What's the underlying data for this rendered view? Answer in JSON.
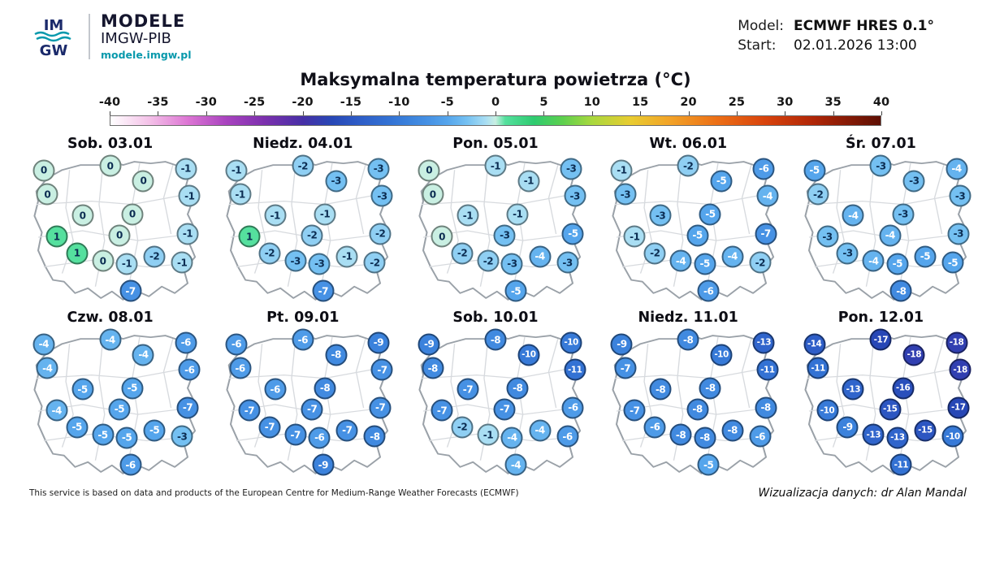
{
  "header": {
    "logo": {
      "mark_top": "IM",
      "mark_bottom": "GW",
      "brand": "MODELE",
      "org": "IMGW-PIB",
      "site": "modele.imgw.pl"
    },
    "model": {
      "label": "Model:",
      "value": "ECMWF HRES 0.1°"
    },
    "start": {
      "label": "Start:",
      "value": "02.01.2026 13:00"
    }
  },
  "title": "Maksymalna temperatura powietrza (°C)",
  "footer": {
    "left": "This service is based on data and products of the European Centre for Medium-Range Weather Forecasts (ECMWF)",
    "right": "Wizualizacja danych: dr Alan Mandal"
  },
  "chart_data": {
    "type": "heatmap",
    "subtype": "bubble-map-grid",
    "title": "Maksymalna temperatura powietrza (°C)",
    "unit": "°C",
    "model": "ECMWF HRES 0.1°",
    "run_start": "02.01.2026 13:00",
    "colorbar_ticks": [
      -40,
      -35,
      -30,
      -25,
      -20,
      -15,
      -10,
      -5,
      0,
      5,
      10,
      15,
      20,
      25,
      30,
      35,
      40
    ],
    "colorbar_range": [
      -40,
      40
    ],
    "color_scale": [
      [
        -40,
        "#ffffff"
      ],
      [
        -36,
        "#f4c2e8"
      ],
      [
        -32,
        "#dd76d4"
      ],
      [
        -28,
        "#a943bf"
      ],
      [
        -24,
        "#7c30ae"
      ],
      [
        -20,
        "#462fa6"
      ],
      [
        -17,
        "#2747b6"
      ],
      [
        -14,
        "#2e5ec8"
      ],
      [
        -11,
        "#3372d4"
      ],
      [
        -9,
        "#3b82dc"
      ],
      [
        -7,
        "#4691e4"
      ],
      [
        -5,
        "#55a5ec"
      ],
      [
        -3,
        "#74c0f2"
      ],
      [
        -1,
        "#a9def3"
      ],
      [
        0,
        "#c9efe2"
      ],
      [
        1,
        "#55e09e"
      ],
      [
        4,
        "#2ecb70"
      ],
      [
        7,
        "#5ed04e"
      ],
      [
        10,
        "#a8d83e"
      ],
      [
        14,
        "#e8cc30"
      ],
      [
        18,
        "#f2a428"
      ],
      [
        23,
        "#ec6f16"
      ],
      [
        28,
        "#d8430c"
      ],
      [
        33,
        "#b02607"
      ],
      [
        40,
        "#5e0f04"
      ]
    ],
    "station_positions": [
      [
        14,
        10
      ],
      [
        50,
        7
      ],
      [
        68,
        17
      ],
      [
        91,
        9
      ],
      [
        93,
        27
      ],
      [
        16,
        26
      ],
      [
        35,
        40
      ],
      [
        62,
        39
      ],
      [
        21,
        54
      ],
      [
        55,
        53
      ],
      [
        92,
        52
      ],
      [
        32,
        65
      ],
      [
        46,
        70
      ],
      [
        59,
        72
      ],
      [
        74,
        67
      ],
      [
        89,
        71
      ],
      [
        61,
        90
      ]
    ],
    "panels": [
      {
        "label": "Sob. 03.01",
        "values": [
          0,
          0,
          0,
          -1,
          -1,
          0,
          0,
          0,
          1,
          0,
          -1,
          1,
          0,
          -1,
          -2,
          -1,
          -7
        ]
      },
      {
        "label": "Niedz. 04.01",
        "values": [
          -1,
          -2,
          -3,
          -3,
          -3,
          -1,
          -1,
          -1,
          1,
          -2,
          -2,
          -2,
          -3,
          -3,
          -1,
          -2,
          -7
        ]
      },
      {
        "label": "Pon. 05.01",
        "values": [
          0,
          -1,
          -1,
          -3,
          -3,
          0,
          -1,
          -1,
          0,
          -3,
          -5,
          -2,
          -2,
          -3,
          -4,
          -3,
          -5
        ]
      },
      {
        "label": "Wt. 06.01",
        "values": [
          -1,
          -2,
          -5,
          -6,
          -4,
          -3,
          -3,
          -5,
          -1,
          -5,
          -7,
          -2,
          -4,
          -5,
          -4,
          -2,
          -6
        ]
      },
      {
        "label": "Śr. 07.01",
        "values": [
          -5,
          -3,
          -3,
          -4,
          -3,
          -2,
          -4,
          -3,
          -3,
          -4,
          -3,
          -3,
          -4,
          -5,
          -5,
          -5,
          -8
        ]
      },
      {
        "label": "Czw. 08.01",
        "values": [
          -4,
          -4,
          -4,
          -6,
          -6,
          -4,
          -5,
          -5,
          -4,
          -5,
          -7,
          -5,
          -5,
          -5,
          -5,
          -3,
          -6
        ]
      },
      {
        "label": "Pt. 09.01",
        "values": [
          -6,
          -6,
          -8,
          -9,
          -7,
          -6,
          -6,
          -8,
          -7,
          -7,
          -7,
          -7,
          -7,
          -6,
          -7,
          -8,
          -9
        ]
      },
      {
        "label": "Sob. 10.01",
        "values": [
          -9,
          -8,
          -10,
          -10,
          -11,
          -8,
          -7,
          -8,
          -7,
          -7,
          -6,
          -2,
          -1,
          -4,
          -4,
          -6,
          -4
        ]
      },
      {
        "label": "Niedz. 11.01",
        "values": [
          -9,
          -8,
          -10,
          -13,
          -11,
          -7,
          -8,
          -8,
          -7,
          -8,
          -8,
          -6,
          -8,
          -8,
          -8,
          -6,
          -5
        ]
      },
      {
        "label": "Pon. 12.01",
        "values": [
          -14,
          -17,
          -18,
          -18,
          -18,
          -11,
          -13,
          -16,
          -10,
          -15,
          -17,
          -9,
          -13,
          -13,
          -15,
          -10,
          -11
        ]
      }
    ]
  }
}
